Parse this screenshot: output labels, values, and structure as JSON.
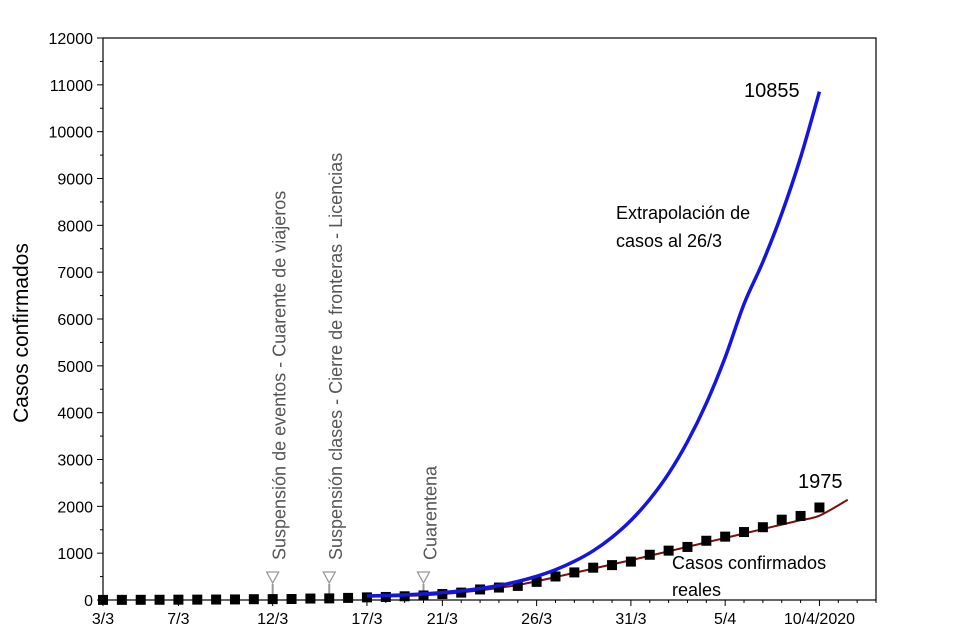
{
  "chart_data": {
    "type": "line",
    "xlabel": "",
    "ylabel": "Casos confirmados",
    "ylim": [
      0,
      12000
    ],
    "y_ticks": [
      0,
      1000,
      2000,
      3000,
      4000,
      5000,
      6000,
      7000,
      8000,
      9000,
      10000,
      11000,
      12000
    ],
    "x_tick_labels": [
      "3/3",
      "7/3",
      "12/3",
      "17/3",
      "21/3",
      "26/3",
      "31/3",
      "5/4",
      "10/4/2020"
    ],
    "x_tick_days": [
      0,
      4,
      9,
      14,
      18,
      23,
      28,
      33,
      38
    ],
    "xlim_days": [
      0,
      41
    ],
    "grid": false,
    "series": [
      {
        "name": "Casos confirmados reales",
        "style": "markers",
        "color": "#000000",
        "x_days": [
          0,
          1,
          2,
          3,
          4,
          5,
          6,
          7,
          8,
          9,
          10,
          11,
          12,
          13,
          14,
          15,
          16,
          17,
          18,
          19,
          20,
          21,
          22,
          23,
          24,
          25,
          26,
          27,
          28,
          29,
          30,
          31,
          32,
          33,
          34,
          35,
          36,
          37,
          38
        ],
        "values": [
          2,
          3,
          4,
          5,
          7,
          8,
          10,
          12,
          17,
          19,
          21,
          31,
          34,
          45,
          56,
          65,
          79,
          97,
          128,
          158,
          225,
          266,
          301,
          387,
          502,
          589,
          690,
          745,
          820,
          966,
          1054,
          1133,
          1265,
          1353,
          1451,
          1554,
          1715,
          1795,
          1975
        ]
      },
      {
        "name": "Extrapolación de casos al 26/3",
        "style": "line",
        "color": "#1515e0",
        "x_days": [
          14,
          15,
          16,
          17,
          18,
          19,
          20,
          21,
          22,
          23,
          24,
          25,
          26,
          27,
          28,
          29,
          30,
          31,
          32,
          33,
          34,
          35,
          36,
          37,
          38
        ],
        "values": [
          88,
          95,
          110,
          130,
          158,
          195,
          245,
          310,
          395,
          505,
          645,
          825,
          1050,
          1340,
          1700,
          2150,
          2700,
          3380,
          4200,
          5180,
          6320,
          7220,
          8250,
          9450,
          10855
        ]
      },
      {
        "name": "",
        "style": "line",
        "color": "#7a0f0f",
        "x_days": [
          14,
          16,
          18,
          20,
          21,
          22,
          23,
          24,
          25,
          26,
          27,
          28,
          29,
          30,
          31,
          32,
          33,
          34,
          35,
          36,
          37,
          38,
          39.5
        ],
        "values": [
          70,
          85,
          125,
          205,
          260,
          320,
          400,
          490,
          580,
          670,
          760,
          850,
          945,
          1040,
          1135,
          1230,
          1325,
          1420,
          1515,
          1610,
          1705,
          1800,
          2140
        ]
      }
    ],
    "annotations": {
      "peak_label": "10855",
      "last_label": "1975",
      "extrap_line1": "Extrapolación de",
      "extrap_line2": "casos al 26/3",
      "reales_line1": "Casos confirmados",
      "reales_line2": "reales"
    },
    "events": [
      {
        "day": 9,
        "text": "Suspensión de eventos - Cuarente de viajeros"
      },
      {
        "day": 12,
        "text": "Suspensión clases - Cierre de fronteras - Licencias"
      },
      {
        "day": 17,
        "text": "Cuarentena"
      }
    ]
  }
}
